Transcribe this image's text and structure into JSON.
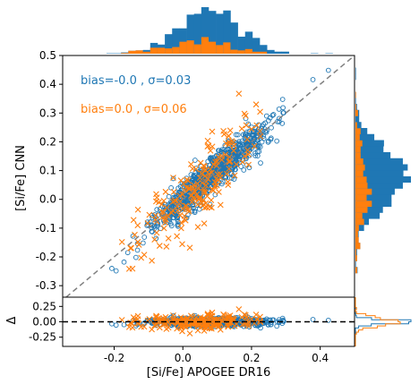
{
  "figure": {
    "xlabel": "[Si/Fe] APOGEE DR16",
    "ylabel_main": "[Si/Fe] CNN",
    "ylabel_resid": "Δ"
  },
  "colors": {
    "series_a": "#1f77b4",
    "series_b": "#ff7f0e",
    "identity_line": "#808080",
    "zero_line": "#000000"
  },
  "chart_data": [
    {
      "type": "scatter",
      "panel": "main",
      "xlim": [
        -0.35,
        0.5
      ],
      "ylim": [
        -0.34,
        0.5
      ],
      "xticks": [
        "-0.2",
        "0.0",
        "0.2",
        "0.4"
      ],
      "yticks": [
        "-0.3",
        "-0.2",
        "-0.1",
        "0.0",
        "0.1",
        "0.2",
        "0.3",
        "0.4",
        "0.5"
      ],
      "identity_line": true,
      "annotations": [
        {
          "text": "bias=-0.0 , σ=0.03",
          "series": "a"
        },
        {
          "text": "bias=0.0 , σ=0.06",
          "series": "b"
        }
      ],
      "series": [
        {
          "key": "a",
          "marker": "open-circle",
          "approx_count": 900,
          "center": [
            0.08,
            0.08
          ],
          "spread": 0.03
        },
        {
          "key": "b",
          "marker": "x",
          "approx_count": 200,
          "center": [
            0.05,
            0.05
          ],
          "spread": 0.06
        }
      ]
    },
    {
      "type": "scatter",
      "panel": "residual",
      "xlim": [
        -0.35,
        0.5
      ],
      "ylim": [
        -0.4,
        0.4
      ],
      "yticks": [
        "-0.25",
        "0.00",
        "0.25"
      ],
      "zero_line": true
    },
    {
      "type": "histogram",
      "panel": "top",
      "orientation": "vertical",
      "series": [
        "a",
        "b"
      ]
    },
    {
      "type": "histogram",
      "panel": "right",
      "orientation": "horizontal",
      "series": [
        "a",
        "b"
      ]
    },
    {
      "type": "histogram",
      "panel": "right-residual",
      "orientation": "horizontal",
      "style": "step",
      "series": [
        "a",
        "b"
      ]
    }
  ]
}
